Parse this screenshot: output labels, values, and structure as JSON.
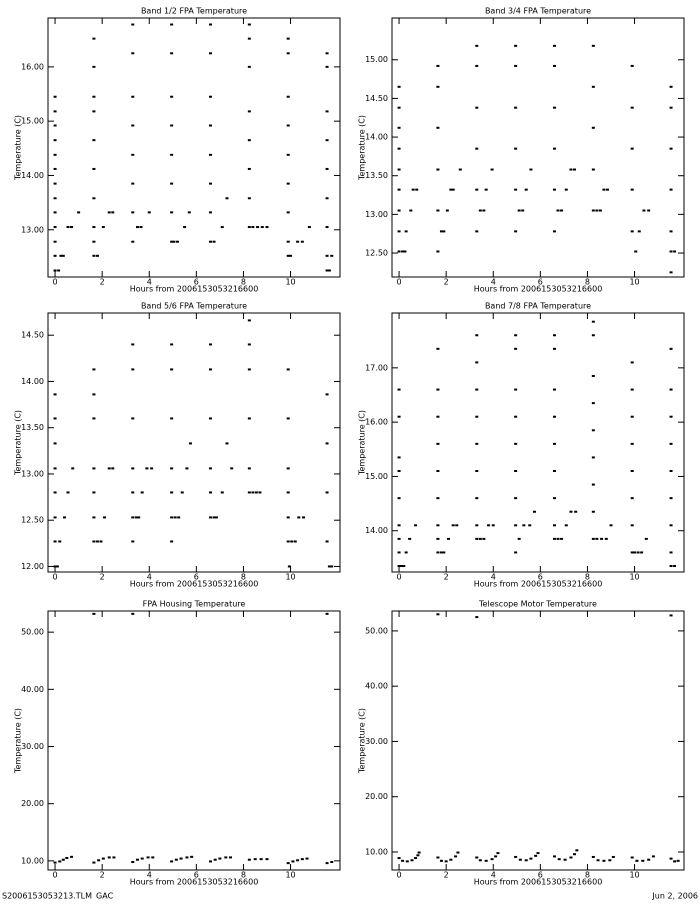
{
  "chart_data": [
    {
      "type": "scatter",
      "title": "Band 1/2 FPA Temperature",
      "x_label": "Hours from 2006153053216600",
      "y_label": "Temperature (C)",
      "color": "#000000",
      "xlim": [
        -0.3,
        12.1
      ],
      "ylim": [
        12.13,
        16.9
      ],
      "xticks": [
        0,
        2,
        4,
        6,
        8,
        10
      ],
      "yticks": [
        {
          "value": 13,
          "label": "13.00"
        },
        {
          "value": 14,
          "label": "14.00"
        },
        {
          "value": 15,
          "label": "15.00"
        },
        {
          "value": 16,
          "label": "16.00"
        }
      ],
      "x": [
        0,
        0,
        0,
        0,
        0,
        0,
        0,
        0,
        0,
        0,
        0,
        0,
        0,
        0.15,
        0.25,
        0.35,
        0.55,
        0.7,
        1.0,
        1.65,
        1.65,
        1.65,
        1.65,
        1.65,
        1.65,
        1.65,
        1.65,
        1.65,
        1.65,
        1.8,
        2.05,
        2.3,
        2.45,
        3.3,
        3.3,
        3.3,
        3.3,
        3.3,
        3.3,
        3.3,
        3.3,
        3.5,
        3.65,
        4.0,
        4.95,
        4.95,
        4.95,
        4.95,
        4.95,
        4.95,
        4.95,
        4.95,
        5.05,
        5.2,
        5.5,
        5.7,
        6.6,
        6.6,
        6.6,
        6.6,
        6.6,
        6.6,
        6.6,
        6.6,
        6.75,
        7.1,
        7.3,
        8.25,
        8.25,
        8.25,
        8.25,
        8.25,
        8.25,
        8.25,
        8.25,
        8.4,
        8.6,
        8.8,
        9.0,
        9.9,
        9.9,
        9.9,
        9.9,
        9.9,
        9.9,
        9.9,
        9.9,
        9.9,
        10.0,
        10.3,
        10.5,
        10.8,
        11.55,
        11.55,
        11.55,
        11.55,
        11.55,
        11.55,
        11.55,
        11.55,
        11.55,
        11.65,
        11.75
      ],
      "values": [
        12.25,
        12.52,
        12.78,
        13.05,
        13.32,
        13.58,
        13.85,
        14.12,
        14.38,
        14.65,
        14.92,
        15.18,
        15.45,
        12.25,
        12.52,
        12.52,
        13.05,
        13.05,
        13.32,
        12.52,
        12.78,
        13.05,
        13.58,
        14.12,
        14.65,
        15.18,
        15.45,
        16.0,
        16.52,
        12.52,
        13.05,
        13.32,
        13.32,
        12.78,
        13.32,
        13.85,
        14.38,
        14.92,
        15.45,
        16.25,
        16.78,
        13.05,
        13.05,
        13.32,
        12.78,
        13.32,
        13.85,
        14.38,
        14.92,
        15.45,
        16.25,
        16.78,
        12.78,
        12.78,
        13.05,
        13.32,
        12.78,
        13.32,
        13.85,
        14.38,
        14.92,
        15.45,
        16.25,
        16.78,
        12.78,
        13.05,
        13.58,
        13.05,
        13.58,
        14.12,
        14.65,
        15.18,
        16.0,
        16.52,
        16.78,
        13.05,
        13.05,
        13.05,
        13.05,
        12.52,
        12.78,
        13.32,
        13.85,
        14.38,
        14.92,
        15.45,
        16.25,
        16.52,
        12.52,
        12.78,
        12.78,
        13.05,
        12.25,
        12.52,
        13.05,
        13.58,
        14.12,
        14.65,
        15.18,
        16.0,
        16.25,
        12.25,
        12.52
      ]
    },
    {
      "type": "scatter",
      "title": "Band 3/4 FPA Temperature",
      "x_label": "Hours from 2006153053216600",
      "y_label": "Temperature (C)",
      "color": "#000000",
      "xlim": [
        -0.3,
        12.1
      ],
      "ylim": [
        12.19,
        15.54
      ],
      "xticks": [
        0,
        2,
        4,
        6,
        8,
        10
      ],
      "yticks": [
        {
          "value": 12.5,
          "label": "12.50"
        },
        {
          "value": 13,
          "label": "13.00"
        },
        {
          "value": 13.5,
          "label": "13.50"
        },
        {
          "value": 14,
          "label": "14.00"
        },
        {
          "value": 14.5,
          "label": "14.50"
        },
        {
          "value": 15,
          "label": "15.00"
        }
      ],
      "x": [
        0,
        0,
        0,
        0,
        0,
        0,
        0,
        0,
        0,
        0.15,
        0.25,
        0.3,
        0.5,
        0.6,
        0.75,
        1.65,
        1.65,
        1.65,
        1.65,
        1.65,
        1.65,
        1.8,
        1.9,
        2.05,
        2.2,
        2.3,
        2.6,
        3.3,
        3.3,
        3.3,
        3.3,
        3.3,
        3.3,
        3.45,
        3.6,
        3.7,
        3.95,
        4.95,
        4.95,
        4.95,
        4.95,
        4.95,
        4.95,
        5.1,
        5.25,
        5.4,
        5.6,
        6.6,
        6.6,
        6.6,
        6.6,
        6.6,
        6.6,
        6.75,
        6.9,
        7.1,
        7.3,
        7.45,
        8.25,
        8.25,
        8.25,
        8.25,
        8.25,
        8.4,
        8.55,
        8.7,
        8.85,
        9.9,
        9.9,
        9.9,
        9.9,
        9.9,
        10.05,
        10.2,
        10.4,
        10.6,
        11.55,
        11.55,
        11.55,
        11.55,
        11.55,
        11.55,
        11.55,
        11.7
      ],
      "values": [
        12.52,
        12.78,
        13.05,
        13.32,
        13.58,
        13.85,
        14.12,
        14.38,
        14.65,
        12.52,
        12.52,
        12.78,
        13.05,
        13.32,
        13.32,
        12.52,
        13.05,
        13.58,
        14.12,
        14.65,
        14.92,
        12.78,
        12.78,
        13.05,
        13.32,
        13.32,
        13.58,
        12.78,
        13.32,
        13.85,
        14.38,
        14.92,
        15.18,
        13.05,
        13.05,
        13.32,
        13.58,
        12.78,
        13.32,
        13.85,
        14.38,
        14.92,
        15.18,
        13.05,
        13.05,
        13.32,
        13.58,
        12.78,
        13.32,
        13.85,
        14.38,
        14.92,
        15.18,
        13.05,
        13.05,
        13.32,
        13.58,
        13.58,
        13.05,
        13.58,
        14.12,
        14.65,
        15.18,
        13.05,
        13.05,
        13.32,
        13.32,
        12.78,
        13.32,
        13.85,
        14.38,
        14.92,
        12.52,
        12.78,
        13.05,
        13.05,
        12.25,
        12.52,
        12.78,
        13.32,
        13.85,
        14.38,
        14.65,
        12.52
      ]
    },
    {
      "type": "scatter",
      "title": "Band 5/6 FPA Temperature",
      "x_label": "Hours from 2006153053216600",
      "y_label": "Temperature (C)",
      "color": "#000000",
      "xlim": [
        -0.3,
        12.1
      ],
      "ylim": [
        11.94,
        14.74
      ],
      "xticks": [
        0,
        2,
        4,
        6,
        8,
        10
      ],
      "yticks": [
        {
          "value": 12,
          "label": "12.00"
        },
        {
          "value": 12.5,
          "label": "12.50"
        },
        {
          "value": 13,
          "label": "13.00"
        },
        {
          "value": 13.5,
          "label": "13.50"
        },
        {
          "value": 14,
          "label": "14.00"
        },
        {
          "value": 14.5,
          "label": "14.50"
        }
      ],
      "x": [
        0,
        0,
        0,
        0,
        0,
        0,
        0,
        0,
        0.1,
        0.2,
        0.4,
        0.55,
        0.75,
        1.65,
        1.65,
        1.65,
        1.65,
        1.65,
        1.65,
        1.65,
        1.8,
        1.95,
        2.1,
        2.3,
        2.45,
        3.3,
        3.3,
        3.3,
        3.3,
        3.3,
        3.3,
        3.3,
        3.45,
        3.55,
        3.7,
        3.9,
        4.1,
        4.95,
        4.95,
        4.95,
        4.95,
        4.95,
        4.95,
        4.95,
        5.1,
        5.25,
        5.4,
        5.6,
        5.75,
        6.6,
        6.6,
        6.6,
        6.6,
        6.6,
        6.6,
        6.75,
        6.85,
        7.1,
        7.3,
        7.5,
        8.25,
        8.25,
        8.25,
        8.25,
        8.25,
        8.25,
        8.4,
        8.55,
        8.7,
        9.9,
        9.9,
        9.9,
        9.9,
        9.9,
        9.9,
        9.95,
        10.05,
        10.2,
        10.35,
        10.55,
        11.55,
        11.55,
        11.55,
        11.55,
        11.65,
        11.75
      ],
      "values": [
        12.0,
        12.27,
        12.53,
        12.8,
        13.06,
        13.33,
        13.6,
        13.86,
        12.0,
        12.27,
        12.53,
        12.8,
        13.06,
        12.27,
        12.53,
        12.8,
        13.06,
        13.6,
        13.86,
        14.13,
        12.27,
        12.27,
        12.53,
        13.06,
        13.06,
        12.27,
        12.53,
        12.8,
        13.06,
        13.6,
        14.13,
        14.4,
        12.53,
        12.53,
        12.8,
        13.06,
        13.06,
        12.27,
        12.53,
        12.8,
        13.06,
        13.6,
        14.13,
        14.4,
        12.53,
        12.53,
        12.8,
        13.06,
        13.33,
        12.53,
        12.8,
        13.06,
        13.6,
        14.13,
        14.4,
        12.53,
        12.53,
        12.8,
        13.33,
        13.06,
        12.8,
        13.06,
        13.6,
        14.13,
        14.4,
        14.66,
        12.8,
        12.8,
        12.8,
        12.27,
        12.53,
        12.8,
        13.06,
        13.6,
        14.13,
        12.0,
        12.27,
        12.27,
        12.53,
        12.53,
        12.27,
        12.8,
        13.33,
        13.86,
        12.0,
        12.0
      ]
    },
    {
      "type": "scatter",
      "title": "Band 7/8 FPA Temperature",
      "x_label": "Hours from 2006153053216600",
      "y_label": "Temperature (C)",
      "color": "#000000",
      "xlim": [
        -0.3,
        12.1
      ],
      "ylim": [
        13.24,
        18.01
      ],
      "xticks": [
        0,
        2,
        4,
        6,
        8,
        10
      ],
      "yticks": [
        {
          "value": 14,
          "label": "14.00"
        },
        {
          "value": 15,
          "label": "15.00"
        },
        {
          "value": 16,
          "label": "16.00"
        },
        {
          "value": 17,
          "label": "17.00"
        }
      ],
      "x": [
        0,
        0,
        0,
        0,
        0,
        0,
        0,
        0,
        0,
        0.1,
        0.2,
        0.3,
        0.45,
        0.7,
        1.65,
        1.65,
        1.65,
        1.65,
        1.65,
        1.65,
        1.65,
        1.65,
        1.65,
        1.8,
        1.9,
        2.1,
        2.3,
        2.45,
        3.3,
        3.3,
        3.3,
        3.3,
        3.3,
        3.3,
        3.3,
        3.3,
        3.3,
        3.45,
        3.6,
        3.8,
        4.0,
        4.95,
        4.95,
        4.95,
        4.95,
        4.95,
        4.95,
        4.95,
        4.95,
        4.95,
        5.1,
        5.3,
        5.55,
        5.75,
        6.6,
        6.6,
        6.6,
        6.6,
        6.6,
        6.6,
        6.6,
        6.6,
        6.6,
        6.75,
        6.9,
        7.1,
        7.3,
        7.5,
        8.25,
        8.25,
        8.25,
        8.25,
        8.25,
        8.25,
        8.25,
        8.25,
        8.25,
        8.4,
        8.6,
        8.8,
        9.0,
        9.9,
        9.9,
        9.9,
        9.9,
        9.9,
        9.9,
        9.9,
        9.9,
        10.0,
        10.15,
        10.3,
        10.5,
        11.55,
        11.55,
        11.55,
        11.55,
        11.55,
        11.55,
        11.55,
        11.55,
        11.55,
        11.7
      ],
      "values": [
        13.35,
        13.6,
        13.85,
        14.1,
        14.6,
        15.1,
        15.35,
        16.1,
        16.6,
        13.35,
        13.35,
        13.6,
        13.85,
        14.1,
        13.6,
        13.85,
        14.1,
        14.6,
        15.1,
        15.6,
        16.1,
        16.6,
        17.35,
        13.6,
        13.6,
        13.85,
        14.1,
        14.1,
        13.85,
        14.1,
        14.6,
        15.1,
        15.6,
        16.1,
        16.6,
        17.1,
        17.6,
        13.85,
        13.85,
        14.1,
        14.1,
        13.6,
        14.1,
        14.6,
        15.1,
        15.6,
        16.1,
        16.6,
        17.35,
        17.6,
        13.85,
        14.1,
        14.1,
        14.35,
        13.85,
        14.1,
        14.6,
        15.1,
        15.6,
        16.1,
        16.6,
        17.35,
        17.6,
        13.85,
        13.85,
        14.1,
        14.35,
        14.35,
        13.85,
        14.35,
        14.85,
        15.35,
        15.85,
        16.35,
        16.85,
        17.6,
        17.85,
        13.85,
        13.85,
        13.85,
        14.1,
        13.6,
        14.1,
        14.6,
        15.1,
        15.6,
        16.1,
        16.6,
        17.1,
        13.6,
        13.6,
        13.6,
        13.85,
        13.35,
        13.6,
        14.1,
        14.6,
        15.1,
        15.6,
        16.1,
        16.6,
        17.35,
        13.35
      ]
    },
    {
      "type": "scatter",
      "title": "FPA Housing Temperature",
      "x_label": "Hours from 2006153053216600",
      "y_label": "Temperature (C)",
      "color": "#000000",
      "xlim": [
        -0.3,
        12.1
      ],
      "ylim": [
        8.4,
        53.7
      ],
      "xticks": [
        0,
        2,
        4,
        6,
        8,
        10
      ],
      "yticks": [
        {
          "value": 10,
          "label": "10.00"
        },
        {
          "value": 20,
          "label": "20.00"
        },
        {
          "value": 30,
          "label": "30.00"
        },
        {
          "value": 40,
          "label": "40.00"
        },
        {
          "value": 50,
          "label": "50.00"
        }
      ],
      "x": [
        0,
        0.2,
        0.35,
        0.5,
        0.7,
        1.65,
        1.85,
        2.05,
        2.3,
        2.5,
        1.65,
        3.3,
        3.5,
        3.7,
        3.95,
        4.15,
        3.3,
        4.95,
        5.15,
        5.35,
        5.6,
        5.8,
        6.6,
        6.8,
        7.0,
        7.25,
        7.45,
        8.25,
        8.5,
        8.75,
        9.0,
        9.9,
        10.1,
        10.3,
        10.5,
        10.7,
        11.55,
        11.75,
        11.55
      ],
      "values": [
        9.7,
        9.9,
        10.2,
        10.5,
        10.7,
        9.7,
        10.1,
        10.4,
        10.6,
        10.6,
        53.2,
        9.8,
        10.2,
        10.4,
        10.6,
        10.6,
        53.2,
        9.9,
        10.2,
        10.4,
        10.6,
        10.7,
        9.9,
        10.2,
        10.4,
        10.6,
        10.6,
        10.2,
        10.3,
        10.3,
        10.3,
        9.6,
        9.9,
        10.1,
        10.3,
        10.4,
        9.6,
        9.8,
        53.2
      ]
    },
    {
      "type": "scatter",
      "title": "Telescope Motor Temperature",
      "x_label": "Hours from 2006153053216600",
      "y_label": "Temperature (C)",
      "color": "#000000",
      "xlim": [
        -0.3,
        12.1
      ],
      "ylim": [
        6.74,
        53.6
      ],
      "xticks": [
        0,
        2,
        4,
        6,
        8,
        10
      ],
      "yticks": [
        {
          "value": 10,
          "label": "10.00"
        },
        {
          "value": 20,
          "label": "20.00"
        },
        {
          "value": 30,
          "label": "30.00"
        },
        {
          "value": 40,
          "label": "40.00"
        },
        {
          "value": 50,
          "label": "50.00"
        }
      ],
      "x": [
        0,
        0.15,
        0.35,
        0.55,
        0.7,
        0.8,
        0.85,
        1.65,
        1.8,
        2.0,
        2.2,
        2.4,
        2.5,
        1.65,
        3.3,
        3.45,
        3.7,
        3.95,
        4.1,
        4.2,
        3.3,
        4.95,
        5.15,
        5.4,
        5.6,
        5.8,
        5.9,
        6.6,
        6.8,
        7.05,
        7.3,
        7.45,
        7.55,
        8.25,
        8.45,
        8.7,
        8.95,
        9.1,
        9.9,
        10.1,
        10.35,
        10.6,
        10.8,
        11.55,
        11.7,
        11.85,
        11.55
      ],
      "values": [
        8.9,
        8.4,
        8.3,
        8.5,
        8.9,
        9.4,
        9.9,
        9.0,
        8.4,
        8.3,
        8.6,
        9.2,
        9.9,
        53.0,
        9.0,
        8.5,
        8.4,
        8.7,
        9.2,
        9.8,
        52.5,
        9.1,
        8.6,
        8.5,
        8.8,
        9.3,
        9.8,
        9.2,
        8.7,
        8.6,
        9.0,
        9.6,
        10.3,
        9.1,
        8.5,
        8.4,
        8.5,
        9.1,
        9.0,
        8.4,
        8.4,
        8.6,
        9.2,
        8.8,
        8.3,
        8.4,
        52.8
      ]
    }
  ],
  "footer": {
    "left": "S2006153053213.TLM_GAC",
    "right": "Jun  2, 2006"
  }
}
